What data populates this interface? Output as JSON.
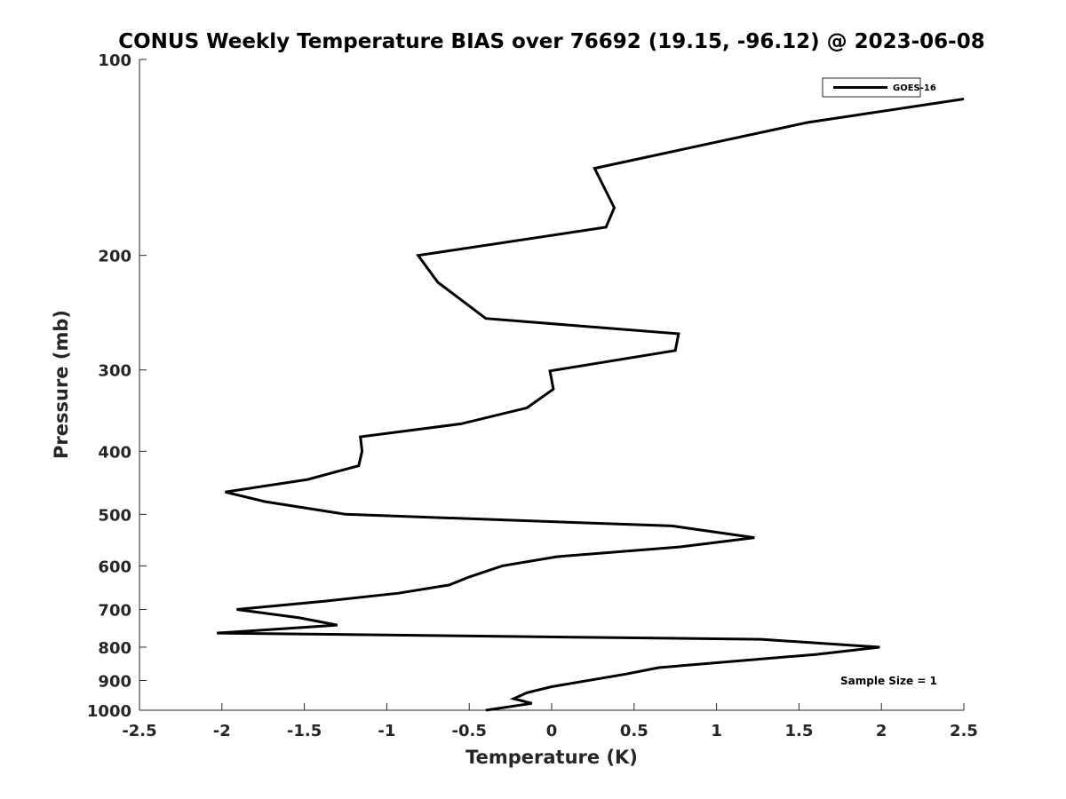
{
  "chart_data": {
    "type": "line",
    "title": "CONUS Weekly Temperature BIAS over 76692 (19.15, -96.12) @ 2023-06-08",
    "xlabel": "Temperature (K)",
    "ylabel": "Pressure (mb)",
    "xlim": [
      -2.5,
      2.5
    ],
    "ylim": [
      1000,
      100
    ],
    "yscale": "log",
    "yreversed": true,
    "x_ticks": [
      -2.5,
      -2,
      -1.5,
      -1,
      -0.5,
      0,
      0.5,
      1,
      1.5,
      2,
      2.5
    ],
    "x_tick_labels": [
      "-2.5",
      "-2",
      "-1.5",
      "-1",
      "-0.5",
      "0",
      "0.5",
      "1",
      "1.5",
      "2",
      "2.5"
    ],
    "y_ticks": [
      100,
      200,
      300,
      400,
      500,
      600,
      700,
      800,
      900,
      1000
    ],
    "y_tick_labels": [
      "100",
      "200",
      "300",
      "400",
      "500",
      "600",
      "700",
      "800",
      "900",
      "1000"
    ],
    "grid": false,
    "legend": {
      "position": "top-right",
      "entries": [
        "GOES-16"
      ]
    },
    "annotation": "Sample Size = 1",
    "series": [
      {
        "name": "GOES-16",
        "color": "#000000",
        "points": [
          [
            2.5,
            115
          ],
          [
            1.55,
            125
          ],
          [
            0.26,
            147
          ],
          [
            0.38,
            169
          ],
          [
            0.33,
            181
          ],
          [
            -0.81,
            200
          ],
          [
            -0.69,
            220
          ],
          [
            -0.4,
            250
          ],
          [
            0.77,
            264
          ],
          [
            0.75,
            280
          ],
          [
            -0.01,
            301
          ],
          [
            0.01,
            321
          ],
          [
            -0.15,
            343
          ],
          [
            -0.55,
            363
          ],
          [
            -1.16,
            380
          ],
          [
            -1.15,
            400
          ],
          [
            -1.17,
            421
          ],
          [
            -1.48,
            442
          ],
          [
            -1.98,
            462
          ],
          [
            -1.74,
            478
          ],
          [
            -1.25,
            500
          ],
          [
            0.73,
            521
          ],
          [
            1.23,
            543
          ],
          [
            0.78,
            561
          ],
          [
            0.03,
            581
          ],
          [
            -0.3,
            600
          ],
          [
            -0.5,
            624
          ],
          [
            -0.62,
            642
          ],
          [
            -0.93,
            661
          ],
          [
            -1.38,
            680
          ],
          [
            -1.91,
            700
          ],
          [
            -1.53,
            721
          ],
          [
            -1.3,
            740
          ],
          [
            -2.03,
            761
          ],
          [
            1.27,
            778
          ],
          [
            1.99,
            800
          ],
          [
            1.6,
            821
          ],
          [
            0.65,
            860
          ],
          [
            0.45,
            880
          ],
          [
            0.0,
            920
          ],
          [
            -0.15,
            940
          ],
          [
            -0.23,
            960
          ],
          [
            -0.12,
            976
          ],
          [
            -0.4,
            1000
          ]
        ]
      }
    ]
  }
}
